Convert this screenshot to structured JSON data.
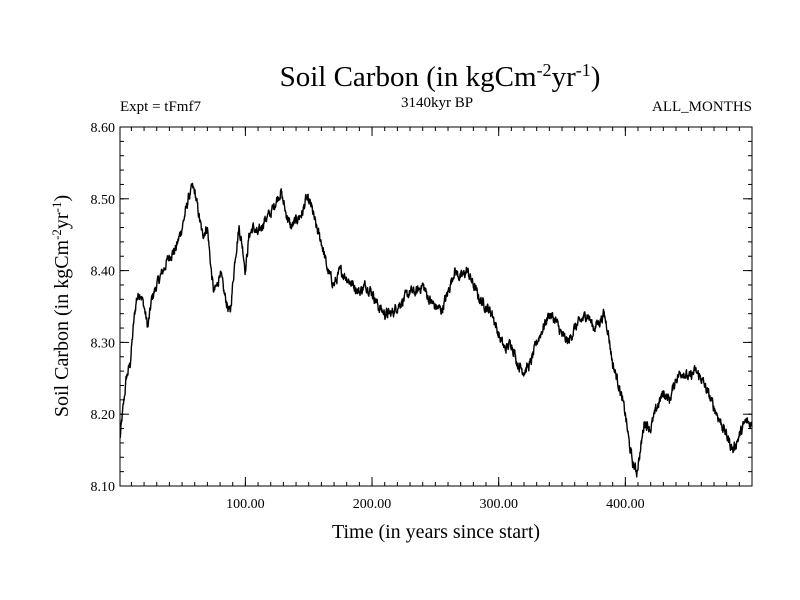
{
  "header": {
    "title_main": "Soil Carbon (in kgCm",
    "title_sup1": "-2",
    "title_mid": "yr",
    "title_sup2": "-1",
    "title_end": ")",
    "expt": "Expt = tFmf7",
    "subtitle": "3140kyr BP",
    "months": "ALL_MONTHS"
  },
  "axes": {
    "xlabel": "Time (in years since start)",
    "ylabel_main": "Soil Carbon (in kgCm",
    "ylabel_sup1": "-2",
    "ylabel_mid": "yr",
    "ylabel_sup2": "-1",
    "ylabel_end": ")"
  },
  "chart_data": {
    "type": "line",
    "title": "Soil Carbon (in kgCm-2yr-1)",
    "subtitle": "3140kyr BP",
    "xlabel": "Time (in years since start)",
    "ylabel": "Soil Carbon (in kgCm-2yr-1)",
    "xlim": [
      1,
      500
    ],
    "ylim": [
      8.1,
      8.6
    ],
    "x_ticks": [
      100,
      200,
      300,
      400
    ],
    "x_tick_labels": [
      "100.00",
      "200.00",
      "300.00",
      "400.00"
    ],
    "y_ticks": [
      8.1,
      8.2,
      8.3,
      8.4,
      8.5,
      8.6
    ],
    "y_tick_labels": [
      "8.10",
      "8.20",
      "8.30",
      "8.40",
      "8.50",
      "8.60"
    ],
    "x_minor_step": 10,
    "y_minor_step": 0.02,
    "series": [
      {
        "name": "Soil Carbon",
        "color": "#000000",
        "x": [
          1,
          3,
          6,
          9,
          12,
          14,
          17,
          20,
          23,
          26,
          30,
          35,
          40,
          45,
          50,
          55,
          58,
          60,
          63,
          66,
          70,
          73,
          75,
          78,
          80,
          83,
          86,
          88,
          92,
          95,
          98,
          100,
          103,
          106,
          110,
          115,
          120,
          125,
          128,
          132,
          136,
          140,
          145,
          148,
          152,
          156,
          160,
          165,
          170,
          175,
          180,
          185,
          190,
          195,
          200,
          205,
          210,
          215,
          220,
          225,
          230,
          235,
          240,
          245,
          250,
          255,
          260,
          265,
          270,
          275,
          280,
          285,
          290,
          295,
          300,
          305,
          310,
          315,
          320,
          325,
          330,
          335,
          340,
          345,
          350,
          355,
          360,
          365,
          370,
          375,
          380,
          383,
          386,
          390,
          395,
          400,
          403,
          406,
          409,
          412,
          415,
          420,
          425,
          430,
          435,
          440,
          445,
          450,
          455,
          460,
          465,
          470,
          475,
          480,
          485,
          490,
          495,
          500
        ],
        "values": [
          8.165,
          8.2,
          8.25,
          8.27,
          8.33,
          8.36,
          8.37,
          8.35,
          8.32,
          8.36,
          8.38,
          8.4,
          8.42,
          8.43,
          8.46,
          8.5,
          8.515,
          8.51,
          8.48,
          8.45,
          8.46,
          8.4,
          8.37,
          8.38,
          8.4,
          8.37,
          8.35,
          8.34,
          8.42,
          8.46,
          8.43,
          8.4,
          8.45,
          8.46,
          8.45,
          8.47,
          8.48,
          8.5,
          8.51,
          8.48,
          8.46,
          8.47,
          8.48,
          8.5,
          8.49,
          8.46,
          8.44,
          8.4,
          8.38,
          8.4,
          8.39,
          8.38,
          8.37,
          8.38,
          8.37,
          8.35,
          8.34,
          8.34,
          8.35,
          8.36,
          8.37,
          8.37,
          8.38,
          8.36,
          8.35,
          8.345,
          8.37,
          8.4,
          8.39,
          8.4,
          8.38,
          8.36,
          8.35,
          8.34,
          8.31,
          8.29,
          8.3,
          8.27,
          8.26,
          8.27,
          8.3,
          8.32,
          8.34,
          8.33,
          8.31,
          8.3,
          8.32,
          8.33,
          8.34,
          8.32,
          8.33,
          8.34,
          8.32,
          8.27,
          8.24,
          8.2,
          8.16,
          8.13,
          8.12,
          8.15,
          8.19,
          8.18,
          8.21,
          8.23,
          8.22,
          8.25,
          8.26,
          8.25,
          8.26,
          8.25,
          8.23,
          8.21,
          8.19,
          8.17,
          8.15,
          8.17,
          8.19,
          8.185
        ]
      }
    ]
  }
}
